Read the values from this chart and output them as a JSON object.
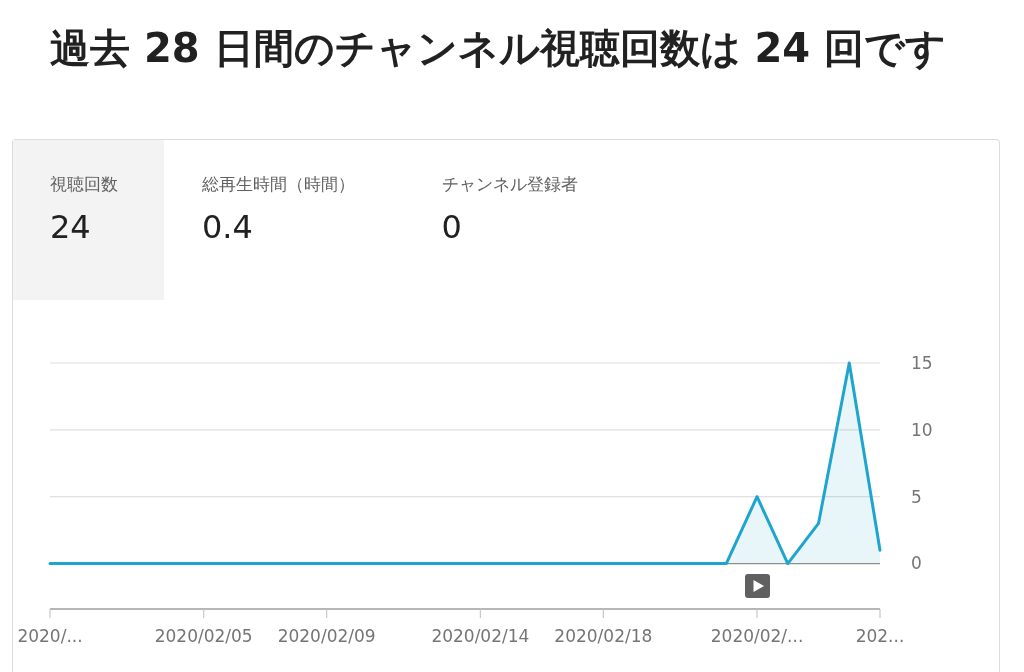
{
  "chart_data": [
    {
      "type": "other",
      "title": "過去 28 日間のチャンネル視聴回数は 24 回です",
      "categories": [
        "視聴回数",
        "総再生時間（時間）",
        "チャンネル登録者"
      ],
      "values": [
        24,
        0.4,
        0
      ],
      "data_labels": true
    },
    {
      "type": "area",
      "x": [
        "2020-01-31",
        "2020-02-01",
        "2020-02-02",
        "2020-02-03",
        "2020-02-04",
        "2020-02-05",
        "2020-02-06",
        "2020-02-07",
        "2020-02-08",
        "2020-02-09",
        "2020-02-10",
        "2020-02-11",
        "2020-02-12",
        "2020-02-13",
        "2020-02-14",
        "2020-02-15",
        "2020-02-16",
        "2020-02-17",
        "2020-02-18",
        "2020-02-19",
        "2020-02-20",
        "2020-02-21",
        "2020-02-22",
        "2020-02-23",
        "2020-02-24",
        "2020-02-25",
        "2020-02-26",
        "2020-02-27"
      ],
      "values": [
        0,
        0,
        0,
        0,
        0,
        0,
        0,
        0,
        0,
        0,
        0,
        0,
        0,
        0,
        0,
        0,
        0,
        0,
        0,
        0,
        0,
        0,
        0,
        5,
        0,
        3,
        15,
        1
      ],
      "color": "#1ea5cd",
      "xlim": [
        "2020-01-31",
        "2020-02-27"
      ],
      "xticks": [
        {
          "value": "2020-01-31",
          "label": "2020/..."
        },
        {
          "value": "2020-02-05",
          "label": "2020/02/05"
        },
        {
          "value": "2020-02-09",
          "label": "2020/02/09"
        },
        {
          "value": "2020-02-14",
          "label": "2020/02/14"
        },
        {
          "value": "2020-02-18",
          "label": "2020/02/18"
        },
        {
          "value": "2020-02-23",
          "label": "2020/02/..."
        },
        {
          "value": "2020-02-27",
          "label": "202..."
        }
      ],
      "ylim": [
        -3.4,
        15
      ],
      "yticks": [
        0,
        5,
        10,
        15
      ],
      "grid": "y"
    }
  ]
}
